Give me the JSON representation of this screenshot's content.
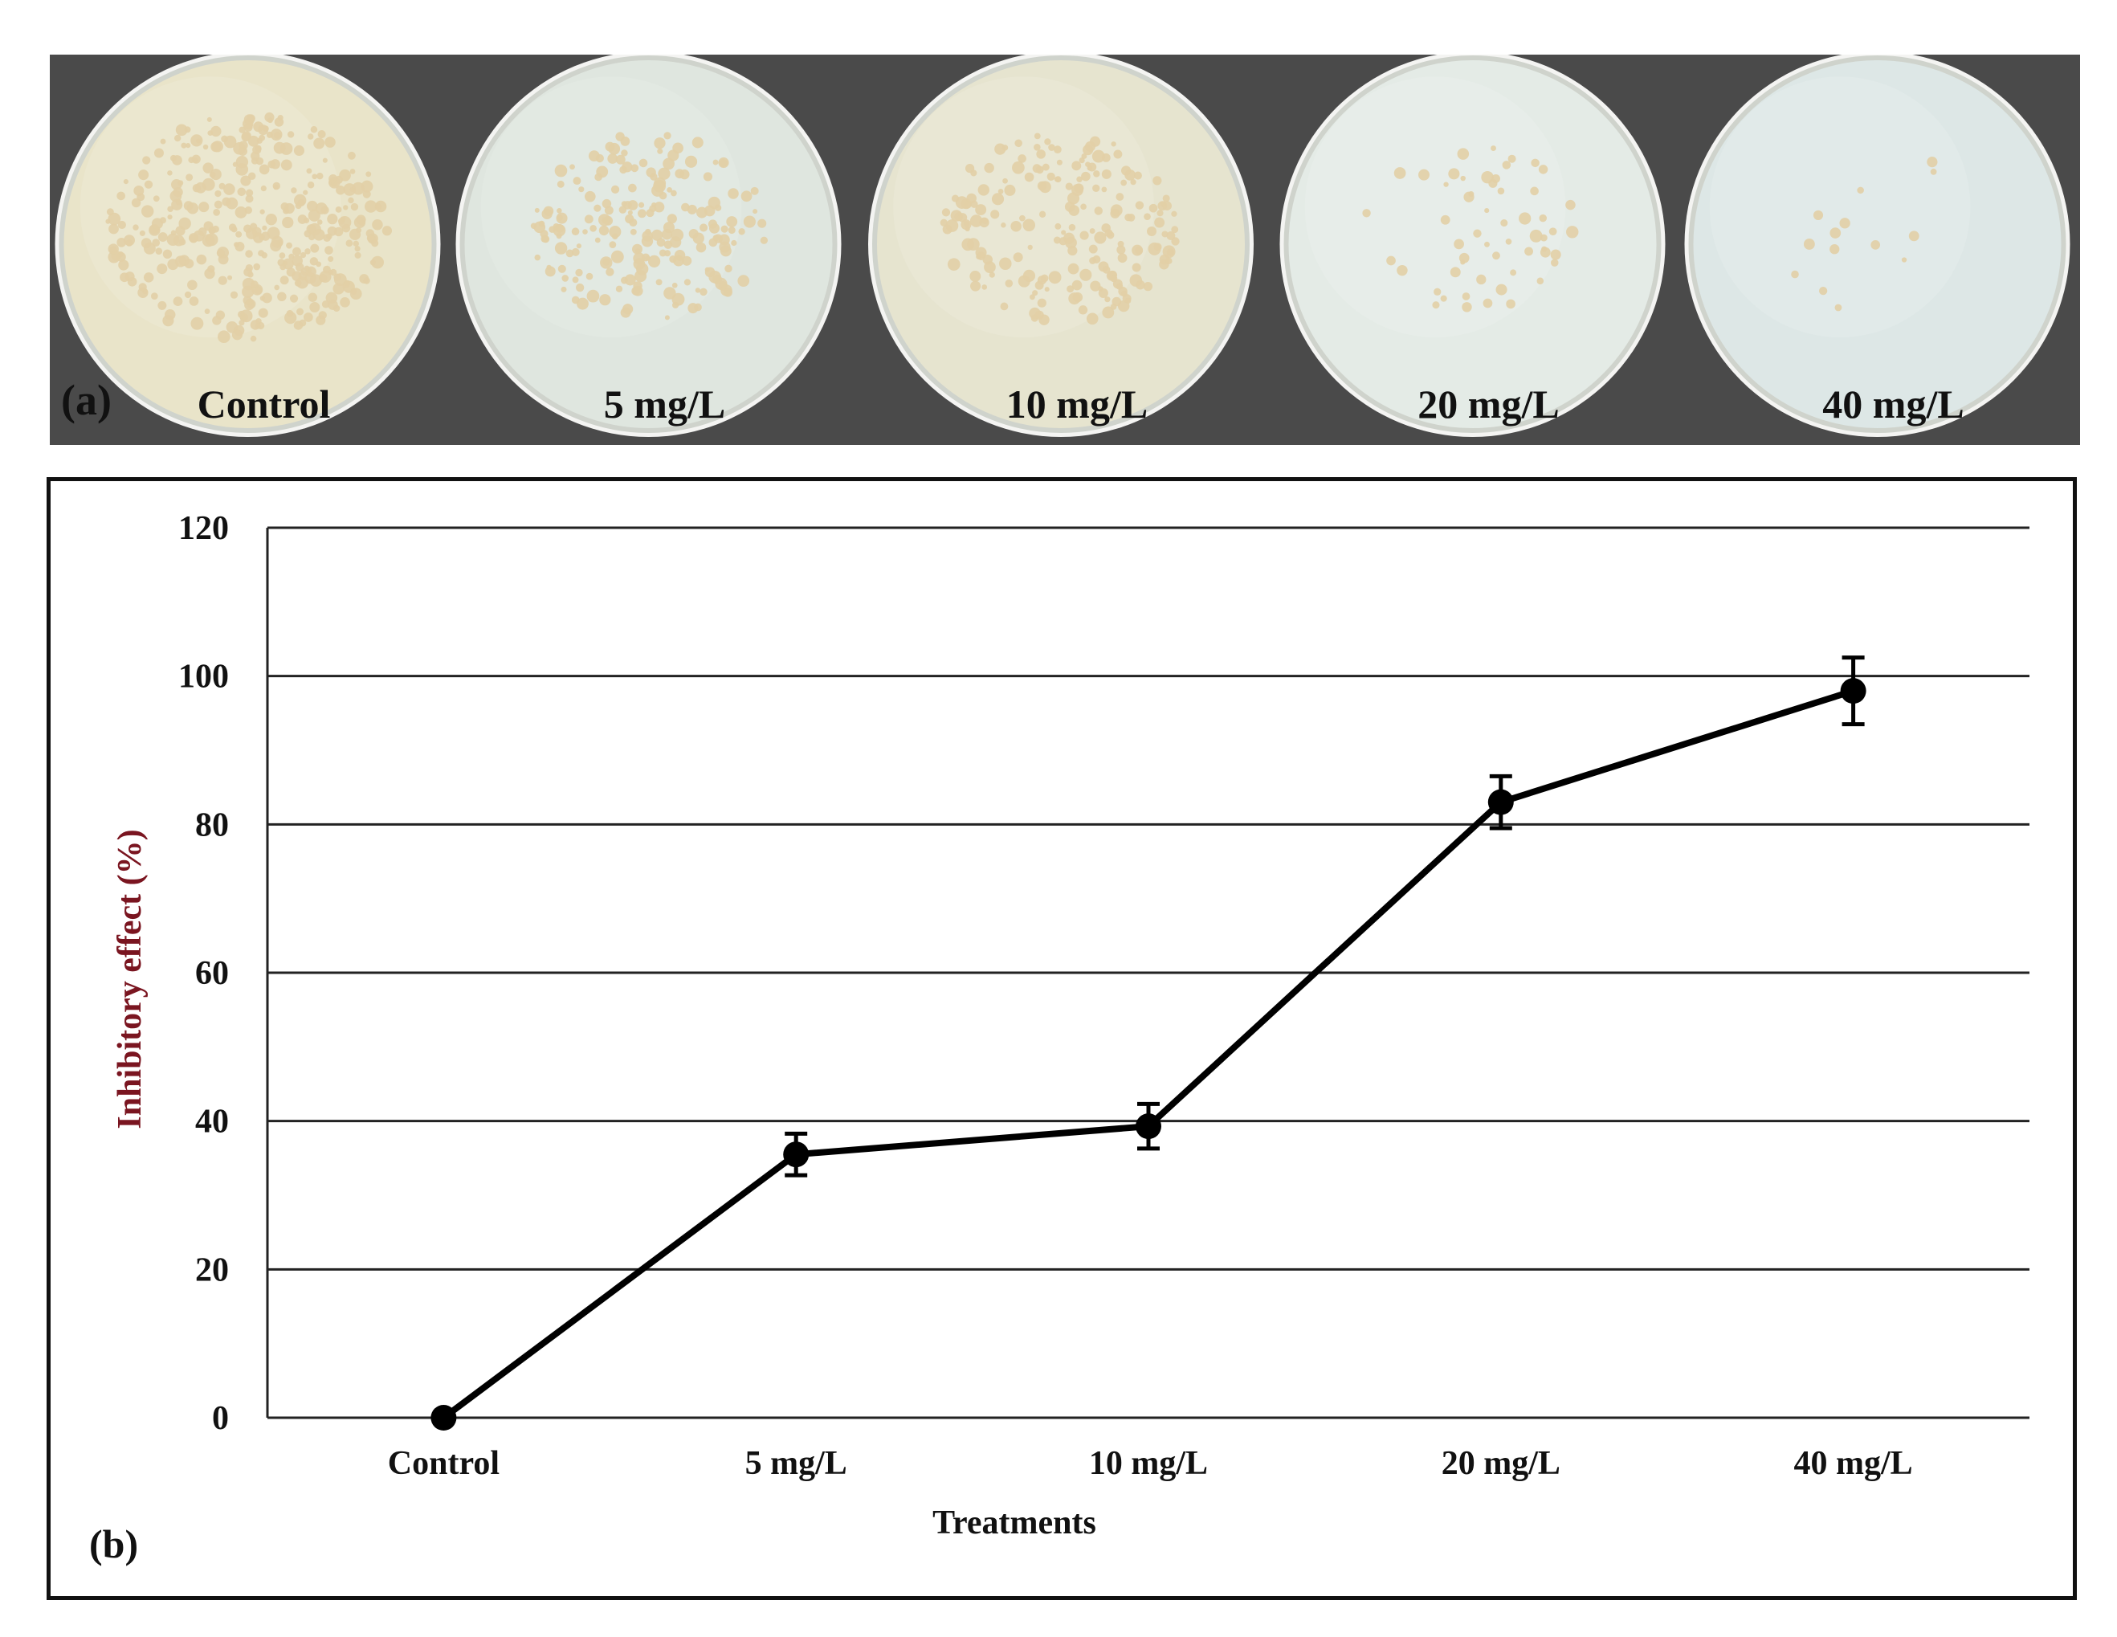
{
  "figure": {
    "panel_a_label": "(a)",
    "panel_b_label": "(b)"
  },
  "plates": [
    {
      "label": "Control",
      "colonies": "dense",
      "tone": "#e9e4c9"
    },
    {
      "label": "5 mg/L",
      "colonies": "moderate",
      "tone": "#dfe6df"
    },
    {
      "label": "10 mg/L",
      "colonies": "moderate",
      "tone": "#e6e4cf"
    },
    {
      "label": "20 mg/L",
      "colonies": "sparse",
      "tone": "#e4ebe6"
    },
    {
      "label": "40 mg/L",
      "colonies": "very sparse",
      "tone": "#dde7e6"
    }
  ],
  "chart_data": {
    "type": "line",
    "title": "",
    "xlabel": "Treatments",
    "ylabel": "Inhibitory effect (%)",
    "ylim": [
      0,
      120
    ],
    "yticks": [
      0,
      20,
      40,
      60,
      80,
      100,
      120
    ],
    "grid": true,
    "categories": [
      "Control",
      "5 mg/L",
      "10 mg/L",
      "20 mg/L",
      "40 mg/L"
    ],
    "series": [
      {
        "values": [
          0,
          35.5,
          39.3,
          83,
          98
        ],
        "errors": [
          0,
          2.8,
          3.0,
          3.5,
          4.5
        ],
        "color": "#000000"
      }
    ],
    "ylabel_color": "#7a1520"
  }
}
